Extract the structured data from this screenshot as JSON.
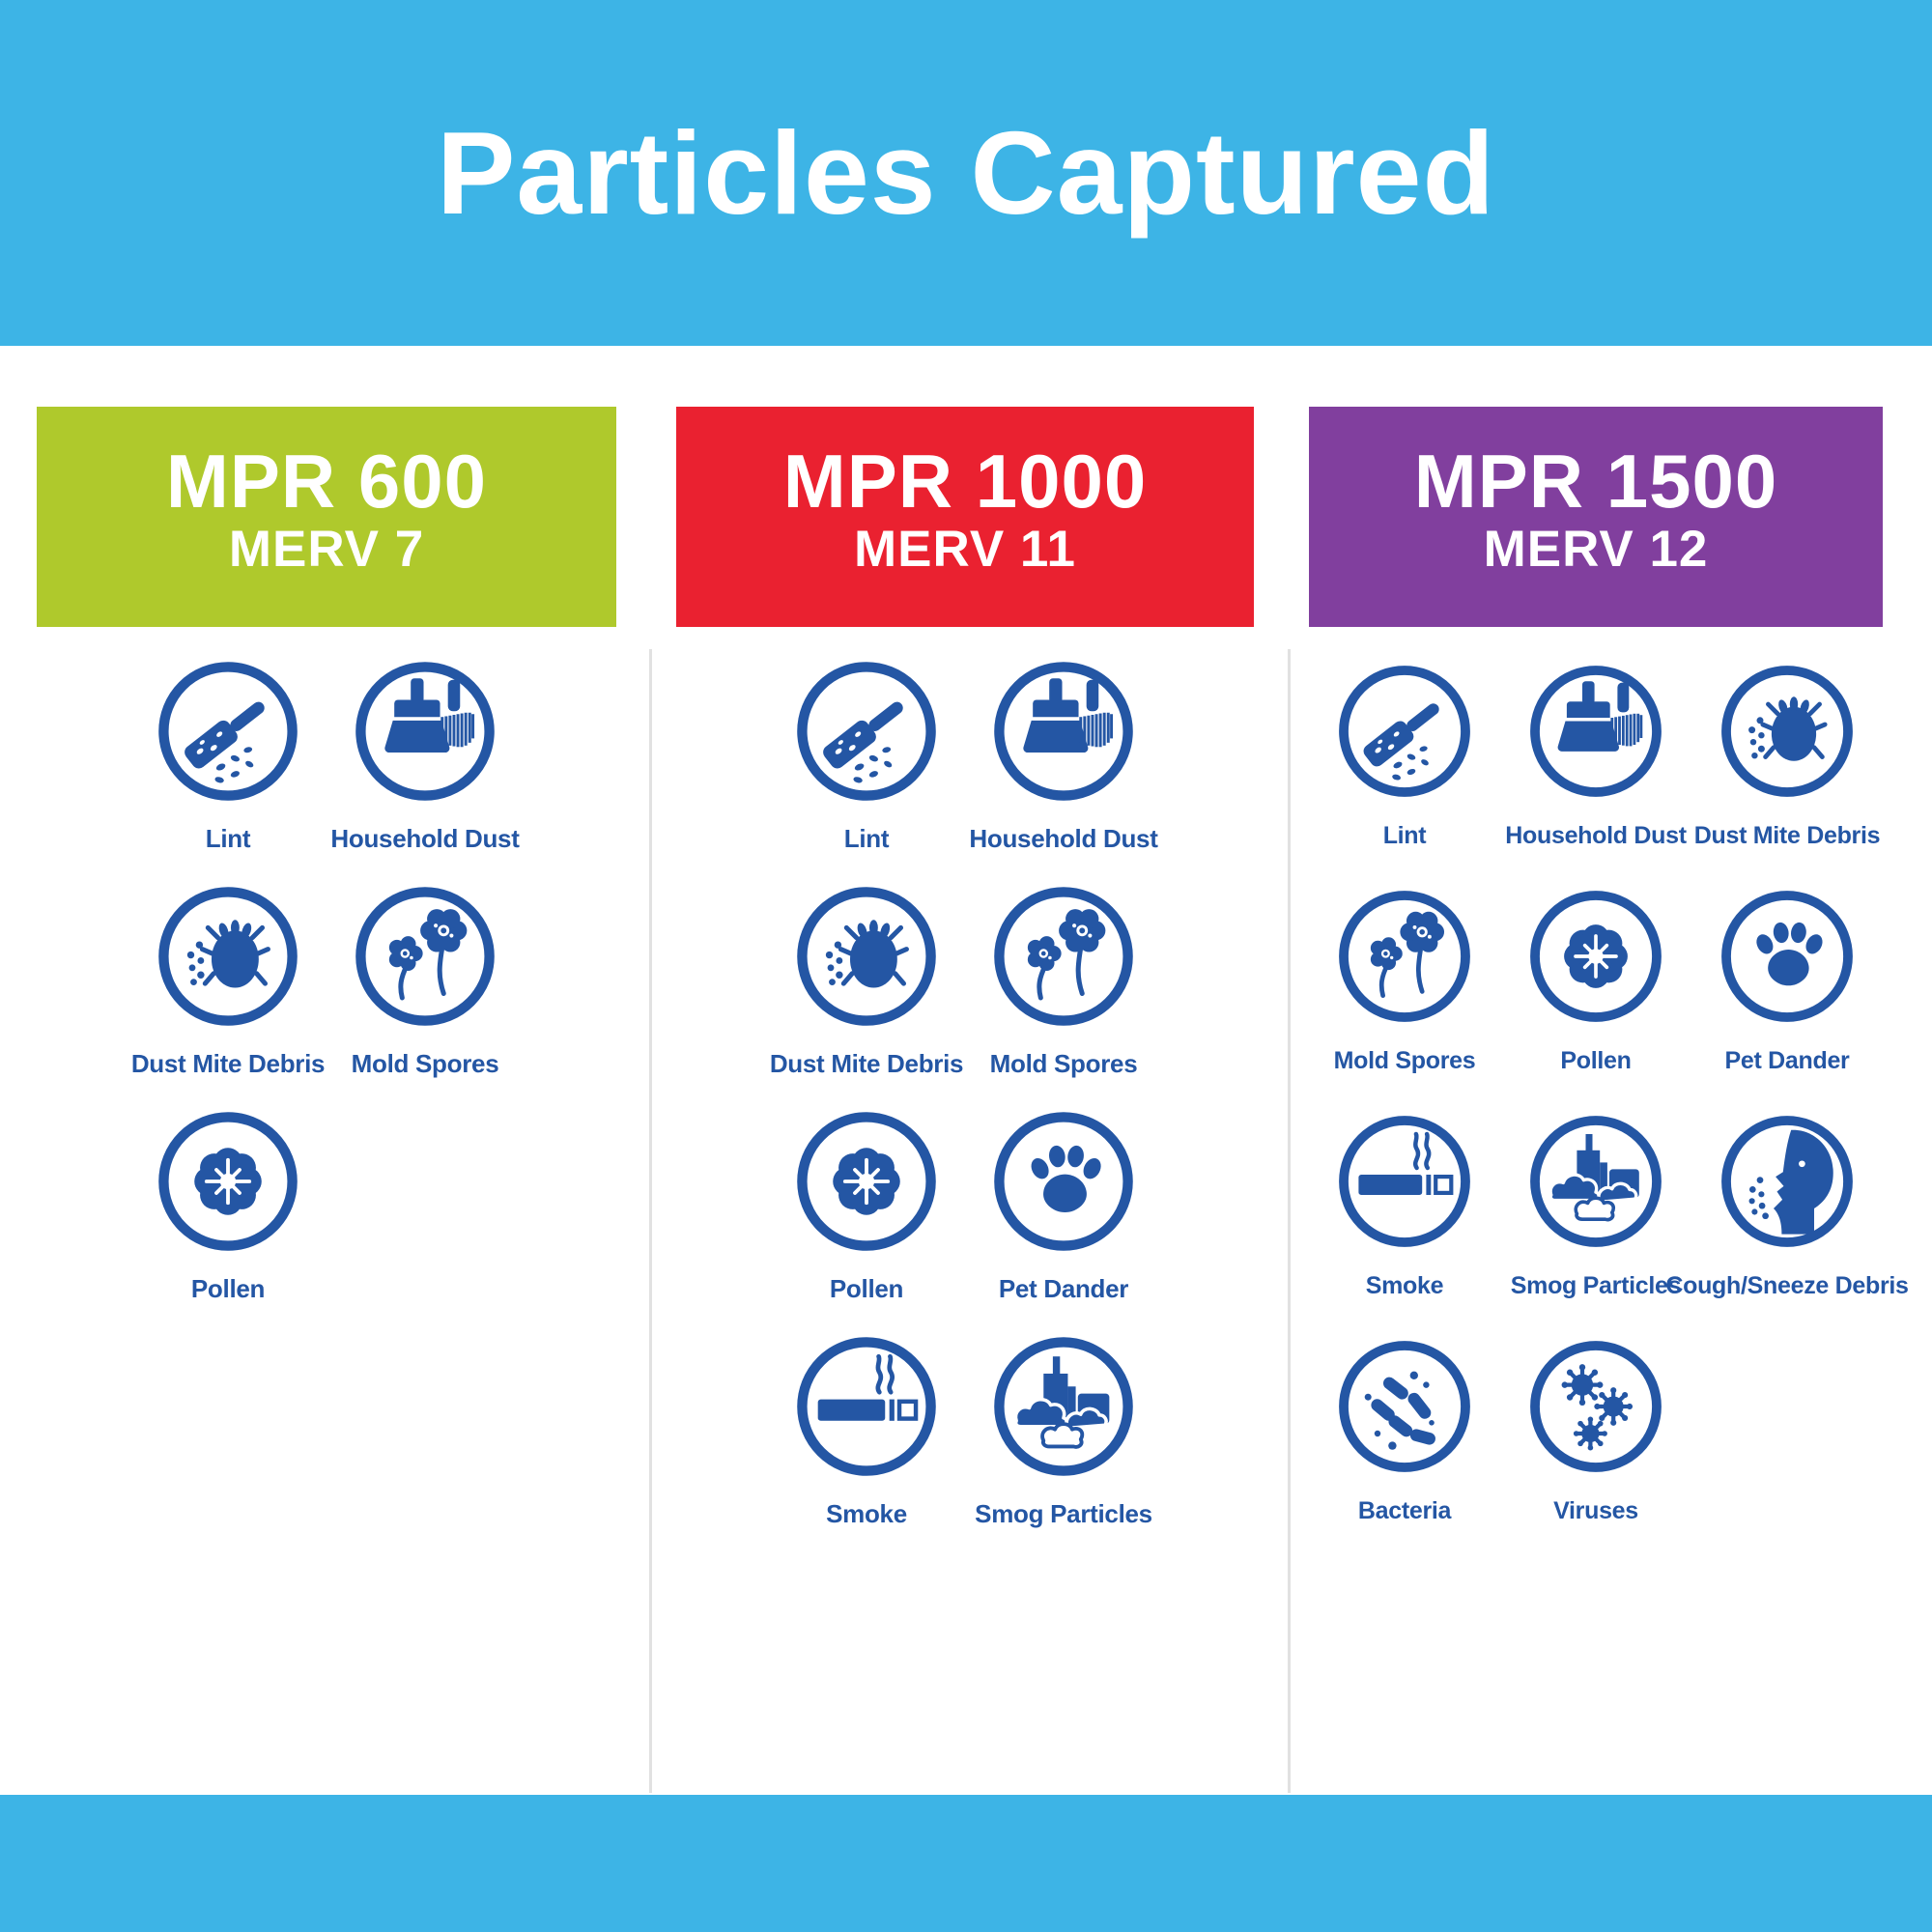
{
  "banner": {
    "title": "Particles Captured"
  },
  "colors": {
    "banner_blue": "#3DB4E6",
    "footer_blue": "#3DB4E6",
    "icon_blue": "#2456A4",
    "label_blue": "#2456A4",
    "divider_gray": "#E1E1E1"
  },
  "columns": [
    {
      "header": {
        "mpr": "MPR 600",
        "merv": "MERV 7",
        "color": "#AFC92C"
      },
      "items": [
        {
          "label": "Lint",
          "icon": "lint"
        },
        {
          "label": "Household Dust",
          "icon": "household-dust"
        },
        {
          "label": "Dust Mite Debris",
          "icon": "dust-mite-debris"
        },
        {
          "label": "Mold Spores",
          "icon": "mold-spores"
        },
        {
          "label": "Pollen",
          "icon": "pollen"
        }
      ]
    },
    {
      "header": {
        "mpr": "MPR 1000",
        "merv": "MERV 11",
        "color": "#EA2130"
      },
      "items": [
        {
          "label": "Lint",
          "icon": "lint"
        },
        {
          "label": "Household Dust",
          "icon": "household-dust"
        },
        {
          "label": "Dust Mite Debris",
          "icon": "dust-mite-debris"
        },
        {
          "label": "Mold Spores",
          "icon": "mold-spores"
        },
        {
          "label": "Pollen",
          "icon": "pollen"
        },
        {
          "label": "Pet Dander",
          "icon": "pet-dander"
        },
        {
          "label": "Smoke",
          "icon": "smoke"
        },
        {
          "label": "Smog Particles",
          "icon": "smog-particles"
        }
      ]
    },
    {
      "header": {
        "mpr": "MPR 1500",
        "merv": "MERV 12",
        "color": "#813F9E"
      },
      "items": [
        {
          "label": "Lint",
          "icon": "lint"
        },
        {
          "label": "Household Dust",
          "icon": "household-dust"
        },
        {
          "label": "Dust Mite Debris",
          "icon": "dust-mite-debris"
        },
        {
          "label": "Mold Spores",
          "icon": "mold-spores"
        },
        {
          "label": "Pollen",
          "icon": "pollen"
        },
        {
          "label": "Pet Dander",
          "icon": "pet-dander"
        },
        {
          "label": "Smoke",
          "icon": "smoke"
        },
        {
          "label": "Smog Particles",
          "icon": "smog-particles"
        },
        {
          "label": "Cough/Sneeze Debris",
          "icon": "cough-sneeze-debris"
        },
        {
          "label": "Bacteria",
          "icon": "bacteria"
        },
        {
          "label": "Viruses",
          "icon": "viruses"
        }
      ]
    }
  ]
}
